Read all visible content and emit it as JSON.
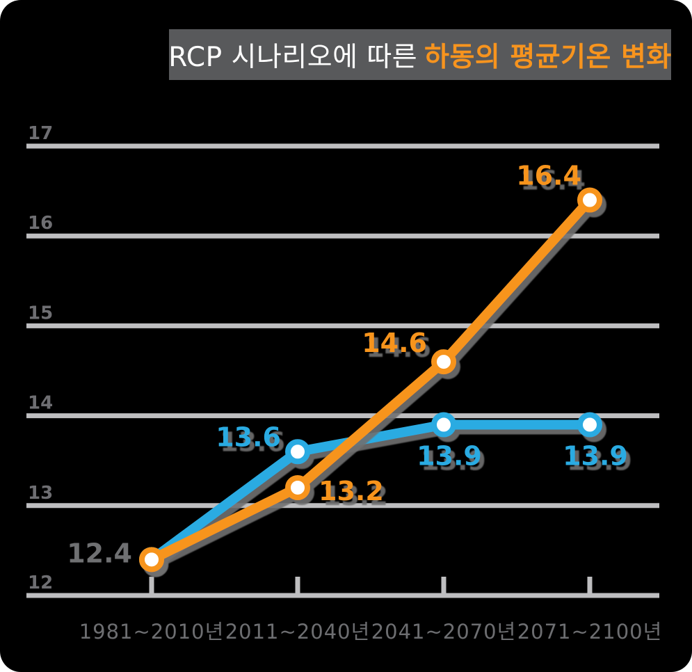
{
  "title": {
    "text_normal": "RCP 시나리오에 따른",
    "text_highlight": "하동의 평균기온 변화"
  },
  "colors": {
    "background": "#000000",
    "card_corner": "#FFFFFF",
    "title_box": "#58595B",
    "title_text": "#FFFFFF",
    "title_highlight": "#F7941E",
    "orange": "#F7941E",
    "blue": "#29ABE2",
    "gridline": "#BEBEC0",
    "x_label": "#6D6E71",
    "y_label": "#8A8A8E",
    "start_label": "#6F7072",
    "marker_fill": "#FFFFFF",
    "shadow": "#707070"
  },
  "chart_data": {
    "type": "line",
    "title": "RCP 시나리오에 따른 하동의 평균기온 변화",
    "categories": [
      "1981~2010년",
      "2011~2040년",
      "2041~2070년",
      "2071~2100년"
    ],
    "series": [
      {
        "name": "orange-scenario",
        "color": "#F7941E",
        "values": [
          12.4,
          13.2,
          14.6,
          16.4
        ],
        "point_labels": [
          "12.4",
          "13.2",
          "14.6",
          "16.4"
        ]
      },
      {
        "name": "blue-scenario",
        "color": "#29ABE2",
        "values": [
          12.4,
          13.6,
          13.9,
          13.9
        ],
        "point_labels": [
          "12.4",
          "13.6",
          "13.9",
          "13.9"
        ]
      }
    ],
    "ylim": [
      12,
      17
    ],
    "yticks": [
      17,
      16,
      15,
      14,
      13,
      12
    ],
    "grid": true,
    "legend_position": "none",
    "shared_start_label": "12.4"
  }
}
